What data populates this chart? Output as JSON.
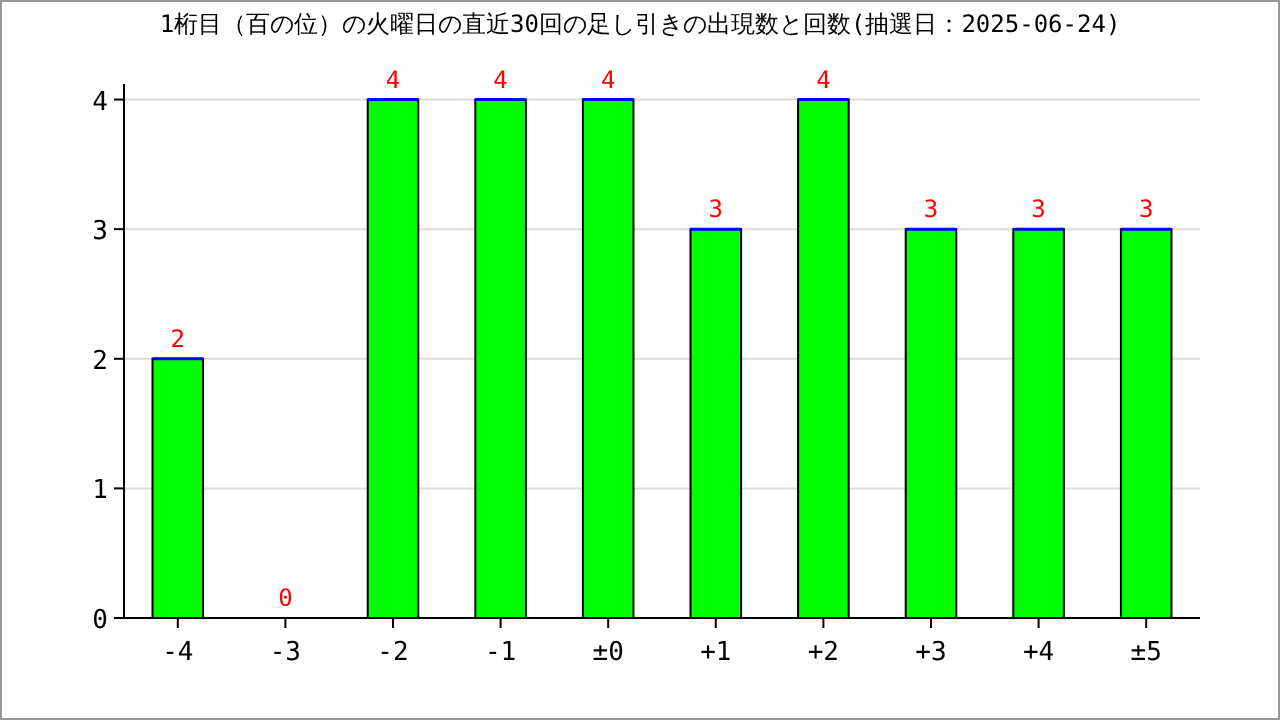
{
  "chart_data": {
    "type": "bar",
    "title": "1桁目（百の位）の火曜日の直近30回の足し引きの出現数と回数(抽選日：2025-06-24)",
    "categories": [
      "-4",
      "-3",
      "-2",
      "-1",
      "±0",
      "+1",
      "+2",
      "+3",
      "+4",
      "±5"
    ],
    "values": [
      2,
      0,
      4,
      4,
      4,
      3,
      4,
      3,
      3,
      3
    ],
    "color": "#00ff00",
    "ylim": [
      0,
      4.12
    ],
    "yticks": [
      0,
      1,
      2,
      3,
      4
    ],
    "grid": "y",
    "data_labels": true
  }
}
